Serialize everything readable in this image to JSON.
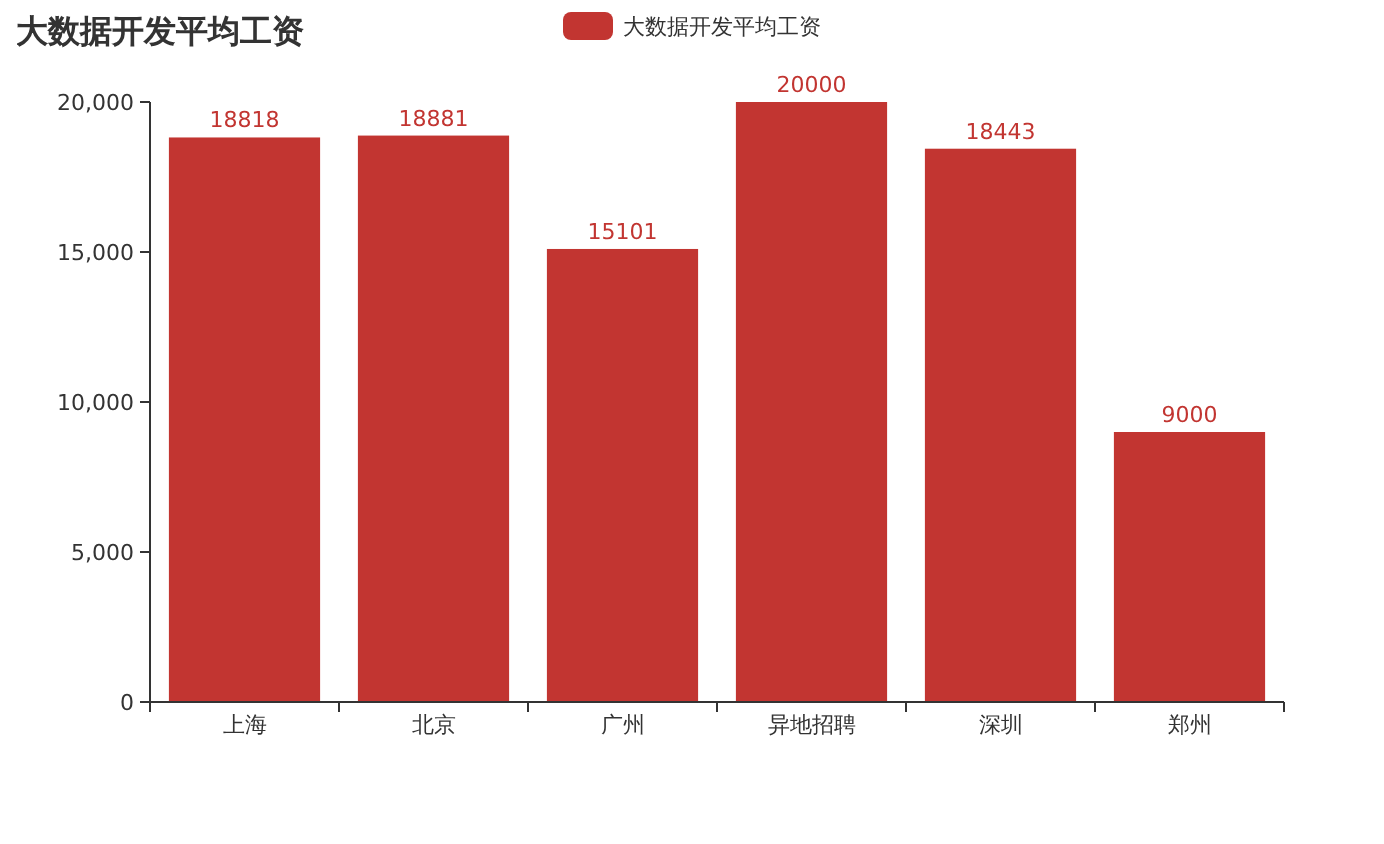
{
  "chart_data": {
    "type": "bar",
    "title": "大数据开发平均工资",
    "categories": [
      "上海",
      "北京",
      "广州",
      "异地招聘",
      "深圳",
      "郑州"
    ],
    "series": [
      {
        "name": "大数据开发平均工资",
        "color": "#c23531",
        "values": [
          18818,
          18881,
          15101,
          20000,
          18443,
          9000
        ]
      }
    ],
    "ylim": [
      0,
      20000
    ],
    "yticks": [
      {
        "value": 0,
        "label": "0"
      },
      {
        "value": 5000,
        "label": "5,000"
      },
      {
        "value": 10000,
        "label": "10,000"
      },
      {
        "value": 15000,
        "label": "15,000"
      },
      {
        "value": 20000,
        "label": "20,000"
      }
    ],
    "data_labels": true,
    "legend": "top",
    "grid": false
  }
}
